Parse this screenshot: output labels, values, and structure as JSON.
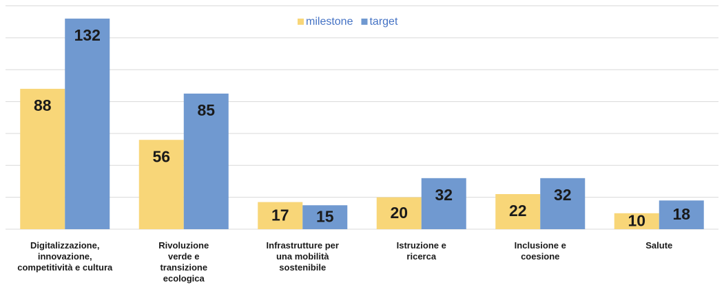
{
  "chart_data": {
    "type": "bar",
    "categories": [
      "Digitalizzazione,\ninnovazione,\ncompetitività e cultura",
      "Rivoluzione\nverde e\ntransizione\necologica",
      "Infrastrutture per\nuna mobilità\nsostenibile",
      "Istruzione e\nricerca",
      "Inclusione e\ncoesione",
      "Salute"
    ],
    "series": [
      {
        "name": "milestone",
        "color": "#f8d678",
        "values": [
          88,
          56,
          17,
          20,
          22,
          10
        ]
      },
      {
        "name": "target",
        "color": "#7099d0",
        "values": [
          132,
          85,
          15,
          32,
          32,
          18
        ]
      }
    ],
    "ylim": [
      0,
      140
    ],
    "yticks": [
      0,
      20,
      40,
      60,
      80,
      100,
      120,
      140
    ],
    "grid": true,
    "legend": "top"
  }
}
